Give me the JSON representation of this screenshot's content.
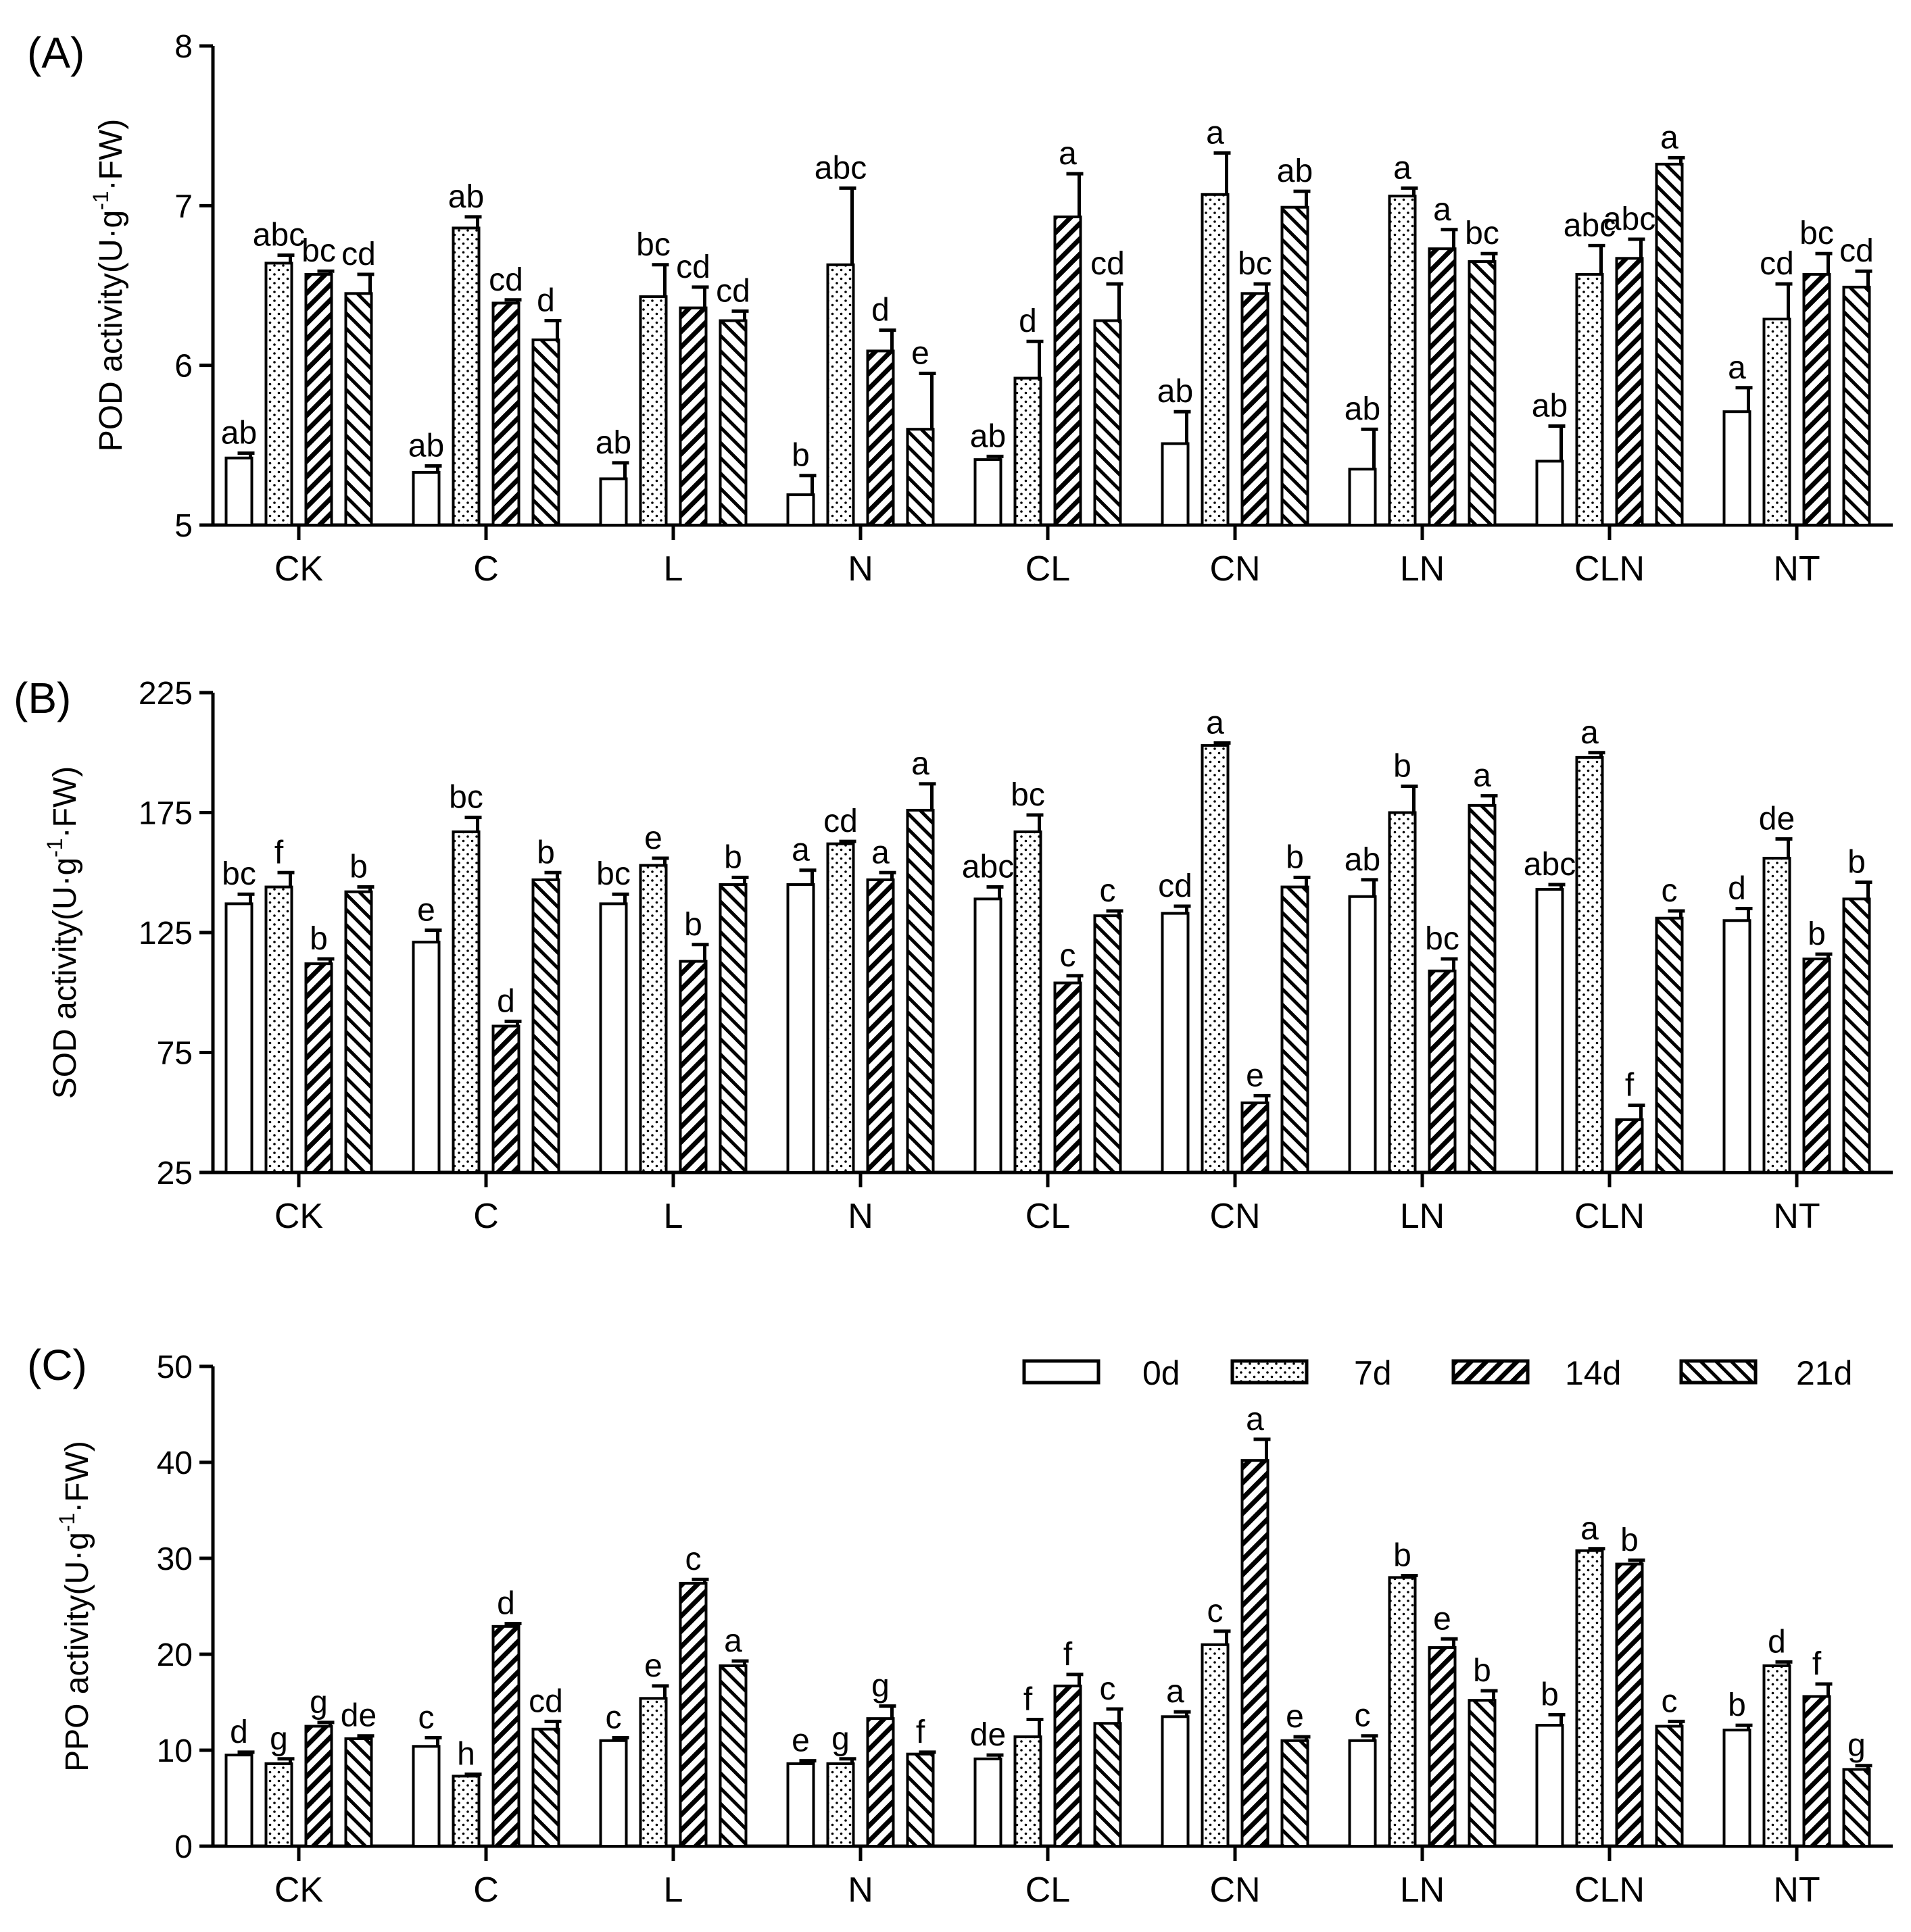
{
  "legend": [
    "0d",
    "7d",
    "14d",
    "21d"
  ],
  "categories": [
    "CK",
    "C",
    "L",
    "N",
    "CL",
    "CN",
    "LN",
    "CLN",
    "NT"
  ],
  "chart_data": [
    {
      "type": "bar",
      "panel_label": "(A)",
      "ylabel": "POD activity(U·g",
      "ylabel_sup": "-1",
      "ylabel_tail": "·FW)",
      "ylim": [
        5,
        8
      ],
      "yticks": [
        5,
        6,
        7,
        8
      ],
      "categories": [
        "CK",
        "C",
        "L",
        "N",
        "CL",
        "CN",
        "LN",
        "CLN",
        "NT"
      ],
      "series": [
        {
          "name": "0d",
          "values": [
            5.42,
            5.33,
            5.29,
            5.19,
            5.41,
            5.51,
            5.35,
            5.4,
            5.71
          ],
          "errors": [
            0.03,
            0.04,
            0.1,
            0.12,
            0.02,
            0.2,
            0.25,
            0.22,
            0.15
          ],
          "letters": [
            "ab",
            "ab",
            "ab",
            "b",
            "ab",
            "ab",
            "ab",
            "ab",
            "a"
          ]
        },
        {
          "name": "7d",
          "values": [
            6.64,
            6.86,
            6.43,
            6.63,
            5.92,
            7.07,
            7.06,
            6.57,
            6.29
          ],
          "errors": [
            0.05,
            0.07,
            0.2,
            0.48,
            0.23,
            0.26,
            0.05,
            0.18,
            0.22
          ],
          "letters": [
            "abc",
            "ab",
            "bc",
            "abc",
            "d",
            "a",
            "a",
            "abc",
            "cd"
          ]
        },
        {
          "name": "14d",
          "values": [
            6.57,
            6.39,
            6.36,
            6.09,
            6.93,
            6.45,
            6.73,
            6.67,
            6.57
          ],
          "errors": [
            0.02,
            0.02,
            0.13,
            0.13,
            0.27,
            0.06,
            0.12,
            0.12,
            0.13
          ],
          "letters": [
            "bc",
            "cd",
            "cd",
            "d",
            "a",
            "bc",
            "a",
            "abc",
            "bc"
          ]
        },
        {
          "name": "21d",
          "values": [
            6.45,
            6.16,
            6.28,
            5.6,
            6.28,
            6.99,
            6.65,
            7.26,
            6.49
          ],
          "errors": [
            0.12,
            0.12,
            0.06,
            0.35,
            0.23,
            0.1,
            0.05,
            0.04,
            0.1
          ],
          "letters": [
            "cd",
            "d",
            "cd",
            "e",
            "cd",
            "ab",
            "bc",
            "a",
            "cd"
          ]
        }
      ]
    },
    {
      "type": "bar",
      "panel_label": "(B)",
      "ylabel": "SOD activity(U·g",
      "ylabel_sup": "-1",
      "ylabel_tail": "·FW)",
      "ylim": [
        25,
        225
      ],
      "yticks": [
        25,
        75,
        125,
        175,
        225
      ],
      "categories": [
        "CK",
        "C",
        "L",
        "N",
        "CL",
        "CN",
        "LN",
        "CLN",
        "NT"
      ],
      "series": [
        {
          "name": "0d",
          "values": [
            137,
            121,
            137,
            145,
            139,
            133,
            140,
            143,
            130
          ],
          "errors": [
            4,
            5,
            4,
            6,
            5,
            3,
            7,
            2,
            5
          ],
          "letters": [
            "bc",
            "e",
            "bc",
            "a",
            "abc",
            "cd",
            "ab",
            "abc",
            "d"
          ]
        },
        {
          "name": "7d",
          "values": [
            144,
            167,
            153,
            162,
            167,
            203,
            175,
            198,
            156
          ],
          "errors": [
            6,
            6,
            3,
            1,
            7,
            1,
            11,
            2,
            8
          ],
          "letters": [
            "f",
            "bc",
            "e",
            "cd",
            "bc",
            "a",
            "b",
            "a",
            "de"
          ]
        },
        {
          "name": "14d",
          "values": [
            112,
            86,
            113,
            147,
            104,
            54,
            109,
            47,
            114
          ],
          "errors": [
            2,
            2,
            7,
            3,
            3,
            3,
            5,
            6,
            2
          ],
          "letters": [
            "b",
            "d",
            "b",
            "a",
            "c",
            "e",
            "bc",
            "f",
            "b"
          ]
        },
        {
          "name": "21d",
          "values": [
            142,
            147,
            145,
            176,
            132,
            144,
            178,
            131,
            139
          ],
          "errors": [
            2,
            3,
            3,
            11,
            2,
            4,
            4,
            3,
            7
          ],
          "letters": [
            "b",
            "b",
            "b",
            "a",
            "c",
            "b",
            "a",
            "c",
            "b"
          ]
        }
      ]
    },
    {
      "type": "bar",
      "panel_label": "(C)",
      "ylabel": "PPO activity(U·g",
      "ylabel_sup": "-1",
      "ylabel_tail": "·FW)",
      "ylim": [
        0,
        50
      ],
      "yticks": [
        0,
        10,
        20,
        30,
        40,
        50
      ],
      "categories": [
        "CK",
        "C",
        "L",
        "N",
        "CL",
        "CN",
        "LN",
        "CLN",
        "NT"
      ],
      "series": [
        {
          "name": "0d",
          "values": [
            9.5,
            10.4,
            11.0,
            8.6,
            9.1,
            13.5,
            11.0,
            12.6,
            12.1
          ],
          "errors": [
            0.3,
            0.9,
            0.3,
            0.3,
            0.4,
            0.5,
            0.5,
            1.1,
            0.5
          ],
          "letters": [
            "d",
            "c",
            "c",
            "e",
            "de",
            "a",
            "c",
            "b",
            "b"
          ]
        },
        {
          "name": "7d",
          "values": [
            8.6,
            7.3,
            15.4,
            8.6,
            11.4,
            21.0,
            28.0,
            30.8,
            18.8
          ],
          "errors": [
            0.5,
            0.2,
            1.3,
            0.5,
            1.8,
            1.4,
            0.2,
            0.2,
            0.4
          ],
          "letters": [
            "g",
            "h",
            "e",
            "g",
            "f",
            "c",
            "b",
            "a",
            "d"
          ]
        },
        {
          "name": "14d",
          "values": [
            12.5,
            22.9,
            27.4,
            13.3,
            16.7,
            40.2,
            20.7,
            29.4,
            15.6
          ],
          "errors": [
            0.4,
            0.3,
            0.4,
            1.3,
            1.2,
            2.2,
            0.9,
            0.4,
            1.3
          ],
          "letters": [
            "g",
            "d",
            "c",
            "g",
            "f",
            "a",
            "e",
            "b",
            "f"
          ]
        },
        {
          "name": "21d",
          "values": [
            11.2,
            12.2,
            18.8,
            9.6,
            12.8,
            11.0,
            15.2,
            12.5,
            8.0
          ],
          "errors": [
            0.3,
            0.8,
            0.5,
            0.2,
            1.5,
            0.4,
            1.0,
            0.5,
            0.4
          ],
          "letters": [
            "de",
            "cd",
            "a",
            "f",
            "c",
            "e",
            "b",
            "c",
            "g"
          ]
        }
      ]
    }
  ]
}
